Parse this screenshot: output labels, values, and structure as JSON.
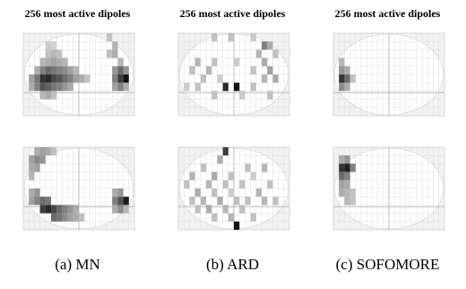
{
  "figure": {
    "panels": [
      {
        "title": "256 most active dipoles",
        "caption": "(a) MN",
        "top_view": {
          "cells": [
            [
              4,
              1,
              0.15
            ],
            [
              5,
              1,
              0.12
            ],
            [
              6,
              2,
              0.2
            ],
            [
              5,
              2,
              0.25
            ],
            [
              4,
              2,
              0.2
            ],
            [
              3,
              3,
              0.25
            ],
            [
              4,
              3,
              0.3
            ],
            [
              5,
              3,
              0.35
            ],
            [
              6,
              3,
              0.3
            ],
            [
              7,
              3,
              0.25
            ],
            [
              2,
              4,
              0.3
            ],
            [
              3,
              4,
              0.5
            ],
            [
              4,
              4,
              0.6
            ],
            [
              5,
              4,
              0.55
            ],
            [
              6,
              4,
              0.5
            ],
            [
              7,
              4,
              0.45
            ],
            [
              8,
              4,
              0.35
            ],
            [
              9,
              4,
              0.25
            ],
            [
              1,
              5,
              0.35
            ],
            [
              2,
              5,
              0.55
            ],
            [
              3,
              5,
              0.85
            ],
            [
              4,
              5,
              0.9
            ],
            [
              5,
              5,
              0.75
            ],
            [
              6,
              5,
              0.7
            ],
            [
              7,
              5,
              0.6
            ],
            [
              8,
              5,
              0.5
            ],
            [
              9,
              5,
              0.35
            ],
            [
              10,
              5,
              0.3
            ],
            [
              11,
              5,
              0.2
            ],
            [
              1,
              6,
              0.3
            ],
            [
              2,
              6,
              0.5
            ],
            [
              3,
              6,
              0.7
            ],
            [
              4,
              6,
              0.65
            ],
            [
              5,
              6,
              0.55
            ],
            [
              6,
              6,
              0.5
            ],
            [
              7,
              6,
              0.4
            ],
            [
              8,
              6,
              0.3
            ],
            [
              3,
              7,
              0.25
            ],
            [
              4,
              7,
              0.3
            ],
            [
              5,
              7,
              0.2
            ],
            [
              15,
              0,
              0.2
            ],
            [
              16,
              1,
              0.25
            ],
            [
              15,
              2,
              0.2
            ],
            [
              16,
              2,
              0.3
            ],
            [
              17,
              3,
              0.25
            ],
            [
              16,
              4,
              0.4
            ],
            [
              17,
              4,
              0.6
            ],
            [
              18,
              4,
              0.4
            ],
            [
              16,
              5,
              0.5
            ],
            [
              17,
              5,
              0.8
            ],
            [
              18,
              5,
              1.0
            ],
            [
              17,
              6,
              0.5
            ],
            [
              16,
              6,
              0.35
            ],
            [
              18,
              6,
              0.3
            ]
          ]
        },
        "bottom_view": {
          "cells": [
            [
              2,
              0,
              0.3
            ],
            [
              3,
              0,
              0.35
            ],
            [
              4,
              0,
              0.3
            ],
            [
              5,
              0,
              0.2
            ],
            [
              1,
              1,
              0.35
            ],
            [
              2,
              1,
              0.45
            ],
            [
              3,
              1,
              0.4
            ],
            [
              1,
              2,
              0.3
            ],
            [
              2,
              2,
              0.35
            ],
            [
              1,
              3,
              0.25
            ],
            [
              1,
              5,
              0.3
            ],
            [
              2,
              5,
              0.4
            ],
            [
              1,
              6,
              0.35
            ],
            [
              2,
              6,
              0.5
            ],
            [
              3,
              6,
              0.6
            ],
            [
              4,
              6,
              0.55
            ],
            [
              3,
              7,
              0.8
            ],
            [
              4,
              7,
              0.9
            ],
            [
              5,
              7,
              0.75
            ],
            [
              6,
              7,
              0.6
            ],
            [
              7,
              7,
              0.5
            ],
            [
              8,
              7,
              0.4
            ],
            [
              9,
              7,
              0.3
            ],
            [
              5,
              8,
              0.6
            ],
            [
              6,
              8,
              0.55
            ],
            [
              7,
              8,
              0.45
            ],
            [
              8,
              8,
              0.35
            ],
            [
              9,
              8,
              0.3
            ],
            [
              10,
              8,
              0.2
            ],
            [
              16,
              5,
              0.3
            ],
            [
              17,
              5,
              0.4
            ],
            [
              16,
              6,
              0.5
            ],
            [
              17,
              6,
              0.7
            ],
            [
              18,
              6,
              0.95
            ],
            [
              17,
              7,
              0.45
            ],
            [
              16,
              7,
              0.3
            ],
            [
              18,
              7,
              0.25
            ]
          ]
        }
      },
      {
        "title": "256 most active dipoles",
        "caption": "(b) ARD",
        "top_view": {
          "cells": [
            [
              6,
              0,
              0.2
            ],
            [
              9,
              0,
              0.2
            ],
            [
              13,
              0,
              0.15
            ],
            [
              15,
              1,
              0.5
            ],
            [
              16,
              1,
              0.3
            ],
            [
              14,
              2,
              0.25
            ],
            [
              17,
              2,
              0.2
            ],
            [
              3,
              3,
              0.25
            ],
            [
              6,
              3,
              0.2
            ],
            [
              10,
              3,
              0.15
            ],
            [
              15,
              3,
              0.3
            ],
            [
              2,
              4,
              0.2
            ],
            [
              5,
              4,
              0.25
            ],
            [
              13,
              4,
              0.2
            ],
            [
              16,
              4,
              0.35
            ],
            [
              4,
              5,
              0.2
            ],
            [
              7,
              5,
              0.15
            ],
            [
              15,
              5,
              0.25
            ],
            [
              17,
              5,
              0.3
            ],
            [
              3,
              6,
              0.2
            ],
            [
              8,
              6,
              0.9
            ],
            [
              10,
              6,
              1.0
            ],
            [
              13,
              6,
              0.2
            ],
            [
              1,
              6,
              0.15
            ],
            [
              6,
              7,
              0.2
            ],
            [
              16,
              7,
              0.2
            ],
            [
              11,
              7,
              0.15
            ]
          ]
        },
        "bottom_view": {
          "cells": [
            [
              8,
              0,
              0.8
            ],
            [
              7,
              1,
              0.3
            ],
            [
              4,
              2,
              0.2
            ],
            [
              12,
              2,
              0.2
            ],
            [
              15,
              2,
              0.25
            ],
            [
              2,
              3,
              0.25
            ],
            [
              6,
              3,
              0.3
            ],
            [
              9,
              3,
              0.2
            ],
            [
              13,
              3,
              0.15
            ],
            [
              1,
              4,
              0.2
            ],
            [
              5,
              4,
              0.25
            ],
            [
              8,
              4,
              0.2
            ],
            [
              11,
              4,
              0.2
            ],
            [
              16,
              4,
              0.2
            ],
            [
              3,
              5,
              0.3
            ],
            [
              6,
              5,
              0.2
            ],
            [
              9,
              5,
              0.15
            ],
            [
              14,
              5,
              0.25
            ],
            [
              2,
              6,
              0.2
            ],
            [
              4,
              6,
              0.25
            ],
            [
              7,
              6,
              0.3
            ],
            [
              10,
              6,
              0.2
            ],
            [
              12,
              6,
              0.2
            ],
            [
              15,
              6,
              0.25
            ],
            [
              17,
              6,
              0.2
            ],
            [
              3,
              7,
              0.2
            ],
            [
              5,
              7,
              0.3
            ],
            [
              8,
              7,
              0.25
            ],
            [
              11,
              7,
              0.2
            ],
            [
              6,
              8,
              0.2
            ],
            [
              9,
              8,
              0.25
            ],
            [
              13,
              8,
              0.2
            ],
            [
              10,
              9,
              1.0
            ]
          ]
        }
      },
      {
        "title": "256 most active dipoles",
        "caption": "(c) SOFOMORE",
        "top_view": {
          "cells": [
            [
              1,
              3,
              0.25
            ],
            [
              1,
              4,
              0.4
            ],
            [
              2,
              4,
              0.3
            ],
            [
              1,
              5,
              0.85
            ],
            [
              2,
              5,
              0.6
            ],
            [
              1,
              6,
              0.45
            ],
            [
              2,
              6,
              0.3
            ],
            [
              3,
              5,
              0.2
            ]
          ]
        },
        "bottom_view": {
          "cells": [
            [
              1,
              1,
              0.3
            ],
            [
              2,
              1,
              0.4
            ],
            [
              1,
              2,
              0.85
            ],
            [
              2,
              2,
              0.95
            ],
            [
              3,
              2,
              0.5
            ],
            [
              1,
              3,
              0.6
            ],
            [
              2,
              3,
              0.5
            ],
            [
              1,
              4,
              0.35
            ],
            [
              2,
              4,
              0.3
            ],
            [
              1,
              5,
              0.3
            ],
            [
              2,
              5,
              0.25
            ],
            [
              3,
              5,
              0.2
            ],
            [
              2,
              6,
              0.25
            ],
            [
              3,
              6,
              0.2
            ]
          ]
        }
      }
    ]
  }
}
